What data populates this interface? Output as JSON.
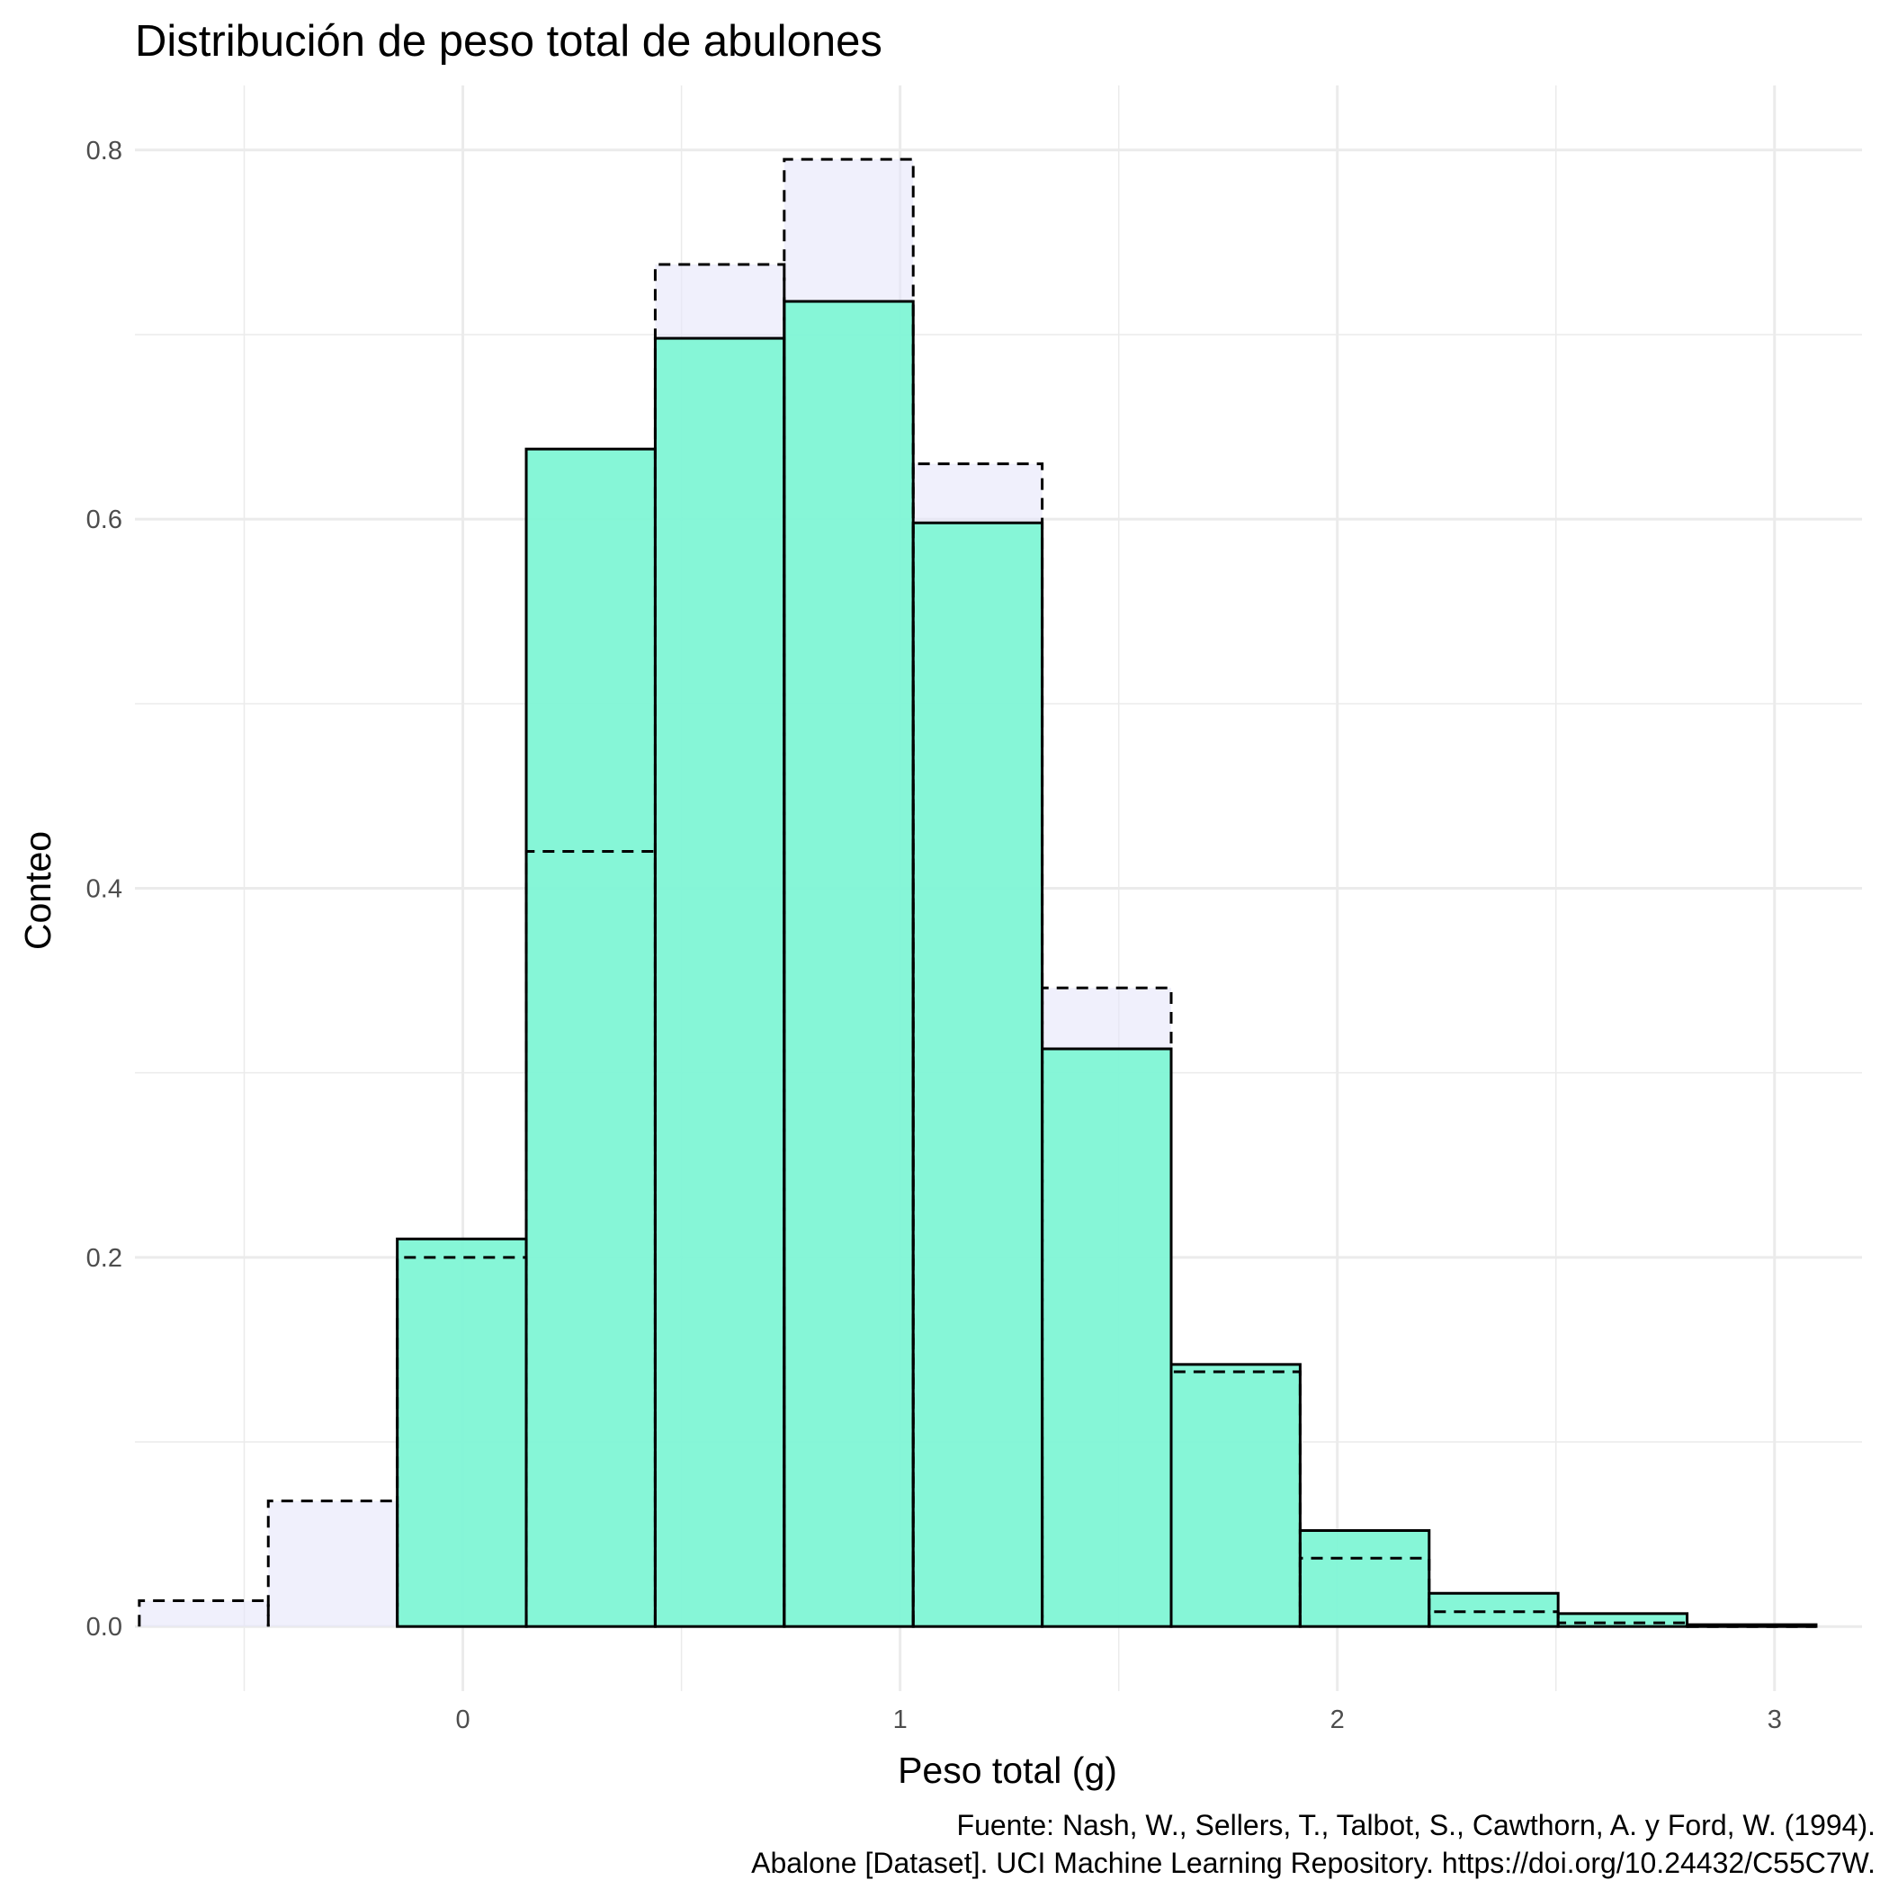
{
  "chart_data": {
    "type": "bar",
    "title": "Distribución de peso total de abulones",
    "xlabel": "Peso total (g)",
    "ylabel": "Conteo",
    "caption": [
      "Fuente: Nash, W., Sellers, T., Talbot, S., Cawthorn, A. y Ford, W. (1994).",
      "Abalone [Dataset]. UCI Machine Learning Repository. https://doi.org/10.24432/C55C7W."
    ],
    "xlim": [
      -0.75,
      3.2
    ],
    "ylim": [
      -0.035,
      0.835
    ],
    "x_ticks": [
      0,
      1,
      2,
      3
    ],
    "x_tick_labels": [
      "0",
      "1",
      "2",
      "3"
    ],
    "y_ticks": [
      0.0,
      0.2,
      0.4,
      0.6,
      0.8
    ],
    "y_tick_labels": [
      "0.0",
      "0.2",
      "0.4",
      "0.6",
      "0.8"
    ],
    "grid": true,
    "legend": "none",
    "bin_edges": [
      -0.74,
      -0.445,
      -0.15,
      0.145,
      0.44,
      0.735,
      1.03,
      1.325,
      1.62,
      1.915,
      2.21,
      2.505,
      2.8,
      3.095
    ],
    "series": [
      {
        "style": "filled, solid outline",
        "fill": "#7ff5d5",
        "values": [
          0.0,
          0.0,
          0.21,
          0.638,
          0.698,
          0.718,
          0.598,
          0.313,
          0.142,
          0.052,
          0.018,
          0.007,
          0.001
        ]
      },
      {
        "style": "translucent, dashed outline",
        "fill": "#e6e6fa",
        "values": [
          0.014,
          0.068,
          0.2,
          0.42,
          0.738,
          0.795,
          0.63,
          0.346,
          0.138,
          0.037,
          0.008,
          0.002,
          0.0
        ]
      }
    ],
    "colors": {
      "overlap_fill": "#7ff5d5",
      "dashed_fill": "#e6e6fa",
      "outline": "#000000"
    }
  }
}
